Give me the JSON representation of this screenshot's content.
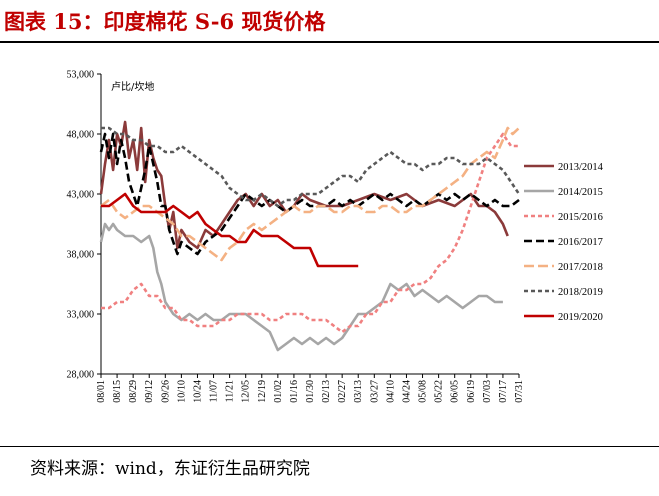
{
  "header": {
    "title": "图表 15：印度棉花 S-6 现货价格"
  },
  "footer": {
    "source": "资料来源：wind，东证衍生品研究院"
  },
  "chart_data": {
    "type": "line",
    "unit_label": "卢比/坎地",
    "ylim": [
      28000,
      53000
    ],
    "yticks": [
      28000,
      33000,
      38000,
      43000,
      48000,
      53000
    ],
    "ytick_labels": [
      "28,000",
      "33,000",
      "38,000",
      "43,000",
      "48,000",
      "53,000"
    ],
    "x_ticks": [
      "08/01",
      "08/15",
      "08/29",
      "09/12",
      "09/26",
      "10/10",
      "10/24",
      "11/07",
      "11/21",
      "12/05",
      "12/19",
      "01/02",
      "01/16",
      "01/30",
      "02/13",
      "02/27",
      "03/13",
      "03/27",
      "04/10",
      "04/24",
      "05/08",
      "05/22",
      "06/05",
      "06/19",
      "07/03",
      "07/17",
      "07/31"
    ],
    "grid": false,
    "legend_position": "right",
    "series": [
      {
        "name": "2013/2014",
        "color": "#8b3a3a",
        "dash": "solid",
        "x": [
          0,
          0.25,
          0.5,
          0.75,
          1,
          1.25,
          1.5,
          1.75,
          2,
          2.25,
          2.5,
          2.75,
          3,
          3.25,
          3.5,
          3.75,
          4,
          4.25,
          4.5,
          4.75,
          5,
          5.5,
          6,
          6.5,
          7,
          7.5,
          8,
          8.5,
          9,
          9.5,
          10,
          10.5,
          11,
          11.5,
          12,
          12.5,
          13,
          14,
          15,
          16,
          17,
          18,
          19,
          20,
          21,
          22,
          23,
          23.5,
          24,
          24.5,
          25,
          25.3
        ],
        "values": [
          43000,
          45500,
          47500,
          45000,
          48000,
          47000,
          49000,
          46000,
          47500,
          45000,
          48500,
          44000,
          47500,
          46000,
          45000,
          44500,
          42000,
          40000,
          41500,
          38500,
          40000,
          39000,
          38500,
          40000,
          39500,
          40500,
          41500,
          42500,
          43000,
          42000,
          43000,
          42000,
          42500,
          41500,
          42000,
          43000,
          42500,
          42000,
          42000,
          42500,
          43000,
          42500,
          43000,
          42000,
          42500,
          42000,
          43000,
          42000,
          42000,
          41500,
          40500,
          39500
        ]
      },
      {
        "name": "2014/2015",
        "color": "#a6a6a6",
        "dash": "solid",
        "x": [
          0,
          0.25,
          0.5,
          0.75,
          1,
          1.5,
          2,
          2.5,
          3,
          3.25,
          3.5,
          3.75,
          4,
          4.5,
          5,
          5.5,
          6,
          6.5,
          7,
          7.5,
          8,
          8.5,
          9,
          9.5,
          10,
          10.5,
          11,
          11.5,
          12,
          12.5,
          13,
          13.5,
          14,
          14.5,
          15,
          15.5,
          16,
          16.5,
          17,
          17.5,
          18,
          18.5,
          19,
          19.5,
          20,
          20.5,
          21,
          21.5,
          22,
          22.5,
          23,
          23.5,
          24,
          24.5,
          25
        ],
        "values": [
          39000,
          40500,
          40000,
          40500,
          40000,
          39500,
          39500,
          39000,
          39500,
          38500,
          36500,
          35500,
          34000,
          33000,
          32500,
          33000,
          32500,
          33000,
          32500,
          32500,
          33000,
          33000,
          33000,
          32500,
          32000,
          31500,
          30000,
          30500,
          31000,
          30500,
          31000,
          30500,
          31000,
          30500,
          31000,
          32000,
          33000,
          33000,
          33500,
          34000,
          35500,
          35000,
          35500,
          34500,
          35000,
          34500,
          34000,
          34500,
          34000,
          33500,
          34000,
          34500,
          34500,
          34000,
          34000
        ]
      },
      {
        "name": "2015/2016",
        "color": "#f08080",
        "dash": "4,3",
        "x": [
          0,
          0.5,
          1,
          1.5,
          2,
          2.5,
          3,
          3.5,
          4,
          4.5,
          5,
          5.5,
          6,
          6.5,
          7,
          7.5,
          8,
          8.5,
          9,
          9.5,
          10,
          10.5,
          11,
          11.5,
          12,
          12.5,
          13,
          13.5,
          14,
          14.5,
          15,
          15.5,
          16,
          16.5,
          17,
          17.5,
          18,
          18.5,
          19,
          19.5,
          20,
          20.5,
          21,
          21.5,
          22,
          22.5,
          23,
          23.5,
          24,
          24.5,
          25,
          25.5,
          26
        ],
        "values": [
          33500,
          33500,
          34000,
          34000,
          35000,
          35500,
          34500,
          34500,
          33500,
          33500,
          32500,
          32500,
          32000,
          32000,
          32000,
          32500,
          32500,
          33000,
          33000,
          33000,
          33000,
          32500,
          32500,
          33000,
          33000,
          33000,
          32500,
          32500,
          32500,
          32000,
          31500,
          32000,
          32000,
          33000,
          33000,
          34000,
          34000,
          35000,
          35000,
          35500,
          35500,
          36000,
          37000,
          37500,
          38500,
          40000,
          42000,
          44000,
          46000,
          47000,
          48000,
          47000,
          47000
        ]
      },
      {
        "name": "2016/2017",
        "color": "#000000",
        "dash": "8,4",
        "x": [
          0,
          0.25,
          0.5,
          0.75,
          1,
          1.25,
          1.5,
          1.75,
          2,
          2.25,
          2.5,
          2.75,
          3,
          3.25,
          3.5,
          3.75,
          4,
          4.25,
          4.5,
          4.75,
          5,
          5.5,
          6,
          6.5,
          7,
          7.5,
          8,
          8.5,
          9,
          9.5,
          10,
          10.5,
          11,
          11.5,
          12,
          12.5,
          13,
          13.5,
          14,
          14.5,
          15,
          15.5,
          16,
          16.5,
          17,
          17.5,
          18,
          18.5,
          19,
          19.5,
          20,
          20.5,
          21,
          21.5,
          22,
          22.5,
          23,
          23.5,
          24,
          24.5,
          25,
          25.5,
          26
        ],
        "values": [
          46500,
          48000,
          46000,
          48000,
          45500,
          47500,
          46000,
          44000,
          43000,
          42000,
          43500,
          45000,
          47000,
          45500,
          44000,
          42000,
          42000,
          40000,
          39000,
          38000,
          39000,
          38500,
          38000,
          39000,
          39500,
          40000,
          41000,
          42000,
          43000,
          42500,
          42000,
          42500,
          42000,
          41500,
          42000,
          42500,
          42000,
          42000,
          42000,
          42500,
          42000,
          42500,
          42000,
          42500,
          43000,
          42500,
          43000,
          42500,
          42000,
          42500,
          42000,
          42500,
          43000,
          42500,
          43000,
          42500,
          43000,
          42500,
          42000,
          42500,
          42000,
          42000,
          42500
        ]
      },
      {
        "name": "2017/2018",
        "color": "#f4b183",
        "dash": "10,4",
        "x": [
          0,
          0.5,
          1,
          1.5,
          2,
          2.5,
          3,
          3.5,
          4,
          4.5,
          5,
          5.5,
          6,
          6.5,
          7,
          7.5,
          8,
          8.5,
          9,
          9.5,
          10,
          10.5,
          11,
          11.5,
          12,
          12.5,
          13,
          13.5,
          14,
          14.5,
          15,
          15.5,
          16,
          16.5,
          17,
          17.5,
          18,
          18.5,
          19,
          19.5,
          20,
          20.5,
          21,
          21.5,
          22,
          22.5,
          23,
          23.5,
          24,
          24.5,
          25,
          25.3,
          25.6,
          26
        ],
        "values": [
          42000,
          42500,
          41500,
          41000,
          41500,
          42000,
          42000,
          41500,
          41000,
          40500,
          39500,
          39500,
          39000,
          38500,
          38000,
          37500,
          38500,
          39000,
          40000,
          40500,
          40000,
          40500,
          41000,
          41500,
          42000,
          41500,
          41500,
          42000,
          42000,
          41500,
          41500,
          42000,
          42000,
          41500,
          41500,
          42000,
          42000,
          41500,
          41500,
          42000,
          42000,
          42500,
          43000,
          43500,
          44000,
          44500,
          45500,
          46000,
          46500,
          46000,
          47500,
          48500,
          48000,
          48500
        ]
      },
      {
        "name": "2018/2019",
        "color": "#595959",
        "dash": "4,3",
        "x": [
          0,
          0.5,
          1,
          1.5,
          2,
          2.5,
          3,
          3.5,
          4,
          4.5,
          5,
          5.5,
          6,
          6.5,
          7,
          7.5,
          8,
          8.5,
          9,
          9.5,
          10,
          10.5,
          11,
          11.5,
          12,
          12.5,
          13,
          13.5,
          14,
          14.5,
          15,
          15.5,
          16,
          16.5,
          17,
          17.5,
          18,
          18.5,
          19,
          19.5,
          20,
          20.5,
          21,
          21.5,
          22,
          22.5,
          23,
          23.5,
          24,
          24.5,
          25,
          25.5,
          26
        ],
        "values": [
          48500,
          48500,
          48000,
          48000,
          47500,
          47500,
          47000,
          47000,
          46500,
          46500,
          47000,
          46500,
          46000,
          45500,
          45000,
          44500,
          43500,
          43000,
          42500,
          42500,
          43000,
          42500,
          42000,
          42500,
          42500,
          43000,
          43000,
          43000,
          43500,
          44000,
          44500,
          44500,
          44000,
          45000,
          45500,
          46000,
          46500,
          46000,
          45500,
          45500,
          45000,
          45500,
          45500,
          46000,
          46000,
          45500,
          45500,
          45500,
          46000,
          45500,
          45000,
          44000,
          43000
        ]
      },
      {
        "name": "2019/2020",
        "color": "#c00000",
        "dash": "solid",
        "x": [
          0,
          0.5,
          1,
          1.5,
          2,
          2.5,
          3,
          3.5,
          4,
          4.5,
          5,
          5.5,
          6,
          6.5,
          7,
          7.5,
          8,
          8.5,
          9,
          9.5,
          10,
          10.5,
          11,
          11.5,
          12,
          12.5,
          13,
          13.5,
          14,
          14.5,
          15,
          15.5,
          16
        ],
        "values": [
          42000,
          42000,
          42500,
          43000,
          42000,
          41500,
          41500,
          41500,
          41500,
          42000,
          41500,
          41000,
          41500,
          40500,
          40000,
          39500,
          39500,
          39000,
          39000,
          40000,
          39500,
          39500,
          39500,
          39000,
          38500,
          38500,
          38500,
          37000,
          37000,
          37000,
          37000,
          37000,
          37000
        ]
      }
    ]
  }
}
